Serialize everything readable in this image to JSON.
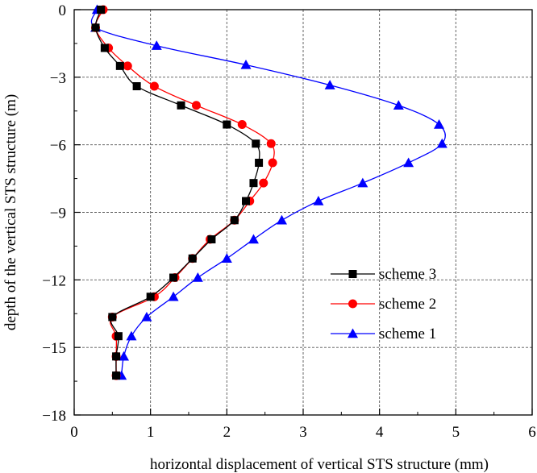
{
  "chart_data": {
    "type": "line",
    "title": "",
    "xlabel": "horizontal displacement of vertical STS structure (mm)",
    "ylabel": "depth of the vertical STS structure (m)",
    "xlim": [
      0,
      6
    ],
    "ylim": [
      -18,
      0
    ],
    "xticks": [
      0,
      1,
      2,
      3,
      4,
      5,
      6
    ],
    "yticks": [
      0,
      -3,
      -6,
      -9,
      -12,
      -15,
      -18
    ],
    "xtick_labels": [
      "0",
      "1",
      "2",
      "3",
      "4",
      "5",
      "6"
    ],
    "ytick_labels": [
      "0",
      "−3",
      "−6",
      "−9",
      "−12",
      "−15",
      "−18"
    ],
    "grid": true,
    "legend_position": "right",
    "series": [
      {
        "name": "scheme 3",
        "color": "#000000",
        "marker": "square",
        "x": [
          0.35,
          0.28,
          0.4,
          0.6,
          0.82,
          1.4,
          2.0,
          2.38,
          2.42,
          2.35,
          2.25,
          2.1,
          1.8,
          1.55,
          1.3,
          1.0,
          0.5,
          0.58,
          0.55,
          0.55
        ],
        "y": [
          0,
          -0.8,
          -1.7,
          -2.5,
          -3.4,
          -4.25,
          -5.1,
          -5.95,
          -6.8,
          -7.7,
          -8.5,
          -9.35,
          -10.2,
          -11.05,
          -11.9,
          -12.75,
          -13.65,
          -14.5,
          -15.4,
          -16.25
        ]
      },
      {
        "name": "scheme 2",
        "color": "#ff0000",
        "marker": "circle",
        "x": [
          0.38,
          0.28,
          0.45,
          0.7,
          1.05,
          1.6,
          2.2,
          2.58,
          2.6,
          2.48,
          2.3,
          2.1,
          1.78,
          1.55,
          1.32,
          1.05,
          0.5,
          0.55,
          0.55,
          0.55
        ],
        "y": [
          0,
          -0.8,
          -1.7,
          -2.5,
          -3.4,
          -4.25,
          -5.1,
          -5.95,
          -6.8,
          -7.7,
          -8.5,
          -9.35,
          -10.2,
          -11.05,
          -11.9,
          -12.75,
          -13.65,
          -14.5,
          -15.4,
          -16.25
        ]
      },
      {
        "name": "scheme 1",
        "color": "#0000ff",
        "marker": "triangle",
        "x": [
          0.3,
          0.28,
          1.08,
          2.25,
          3.35,
          4.25,
          4.78,
          4.82,
          4.38,
          3.78,
          3.2,
          2.72,
          2.35,
          2.0,
          1.62,
          1.3,
          0.95,
          0.75,
          0.65,
          0.62
        ],
        "y": [
          0,
          -0.8,
          -1.6,
          -2.45,
          -3.35,
          -4.25,
          -5.1,
          -5.95,
          -6.8,
          -7.7,
          -8.5,
          -9.35,
          -10.2,
          -11.05,
          -11.9,
          -12.75,
          -13.65,
          -14.5,
          -15.4,
          -16.25
        ]
      }
    ]
  }
}
